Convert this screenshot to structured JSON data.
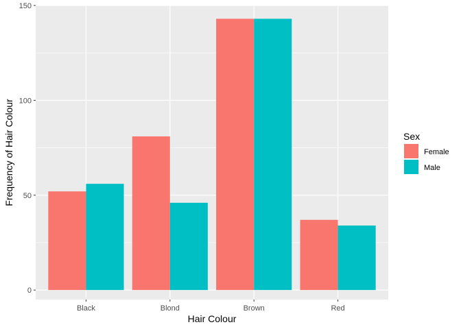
{
  "chart_data": {
    "type": "bar",
    "categories": [
      "Black",
      "Blond",
      "Brown",
      "Red"
    ],
    "series": [
      {
        "name": "Female",
        "values": [
          52,
          81,
          143,
          37
        ],
        "color": "#F8766D"
      },
      {
        "name": "Male",
        "values": [
          56,
          46,
          143,
          34
        ],
        "color": "#00BFC4"
      }
    ],
    "xlabel": "Hair Colour",
    "ylabel": "Frequency of Hair Colour",
    "ylim": [
      -5,
      150
    ],
    "yticks": [
      0,
      50,
      100,
      150
    ],
    "grid": true,
    "legend": {
      "title": "Sex",
      "position": "right"
    },
    "panel_color": "#EBEBEB"
  }
}
